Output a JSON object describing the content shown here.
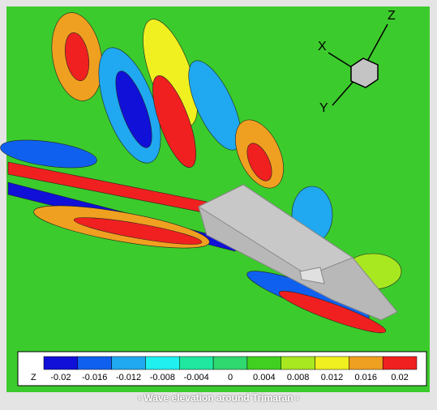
{
  "axes_triad": {
    "x": "X",
    "y": "Y",
    "z": "Z"
  },
  "legend": {
    "label": "Z",
    "levels": [
      -0.02,
      -0.016,
      -0.012,
      -0.008,
      -0.004,
      0,
      0.004,
      0.008,
      0.012,
      0.016,
      0.02
    ],
    "colors": [
      "#1010d8",
      "#1060f0",
      "#20a8f0",
      "#20f0f0",
      "#20e8a0",
      "#30d870",
      "#40d020",
      "#a8e820",
      "#f0f020",
      "#f0a020",
      "#f02020"
    ]
  },
  "caption": "‹ Wave elevation around Trimaran ›"
}
